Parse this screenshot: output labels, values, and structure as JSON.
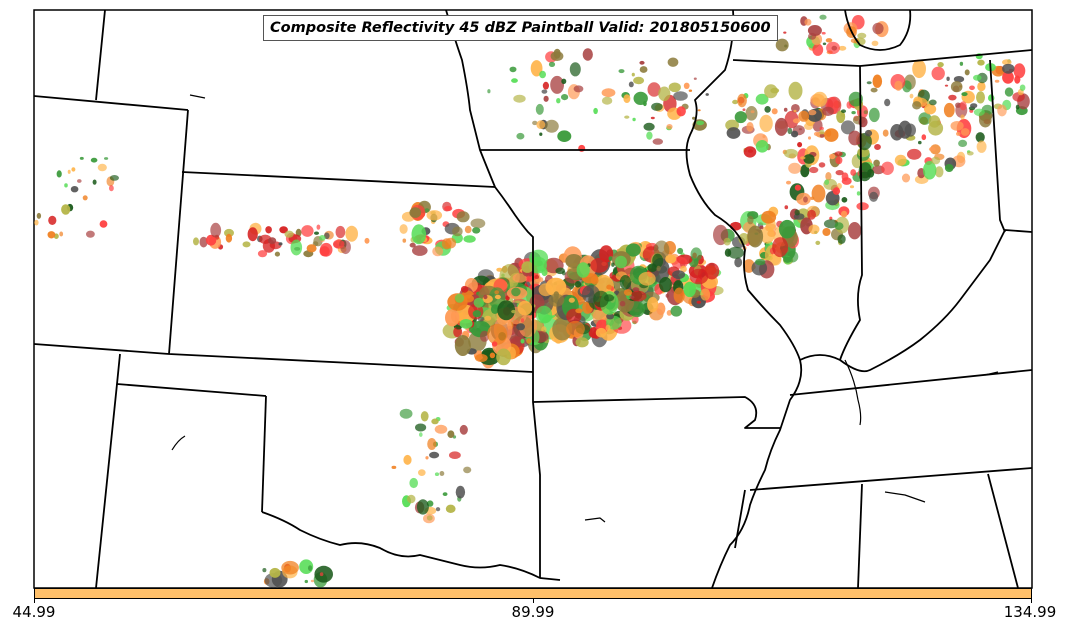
{
  "title": "Composite Reflectivity 45 dBZ Paintball Valid: 201805150600",
  "colorbar": {
    "color": "#ffc06a",
    "ticks": [
      "44.99",
      "89.99",
      "134.99"
    ]
  },
  "palette": [
    "#ff4040",
    "#f08020",
    "#ff9a55",
    "#ffb347",
    "#b5b548",
    "#55dd55",
    "#3a9a3a",
    "#a84040",
    "#505050",
    "#8b7a3a",
    "#1a5a1a",
    "#d62020"
  ]
}
